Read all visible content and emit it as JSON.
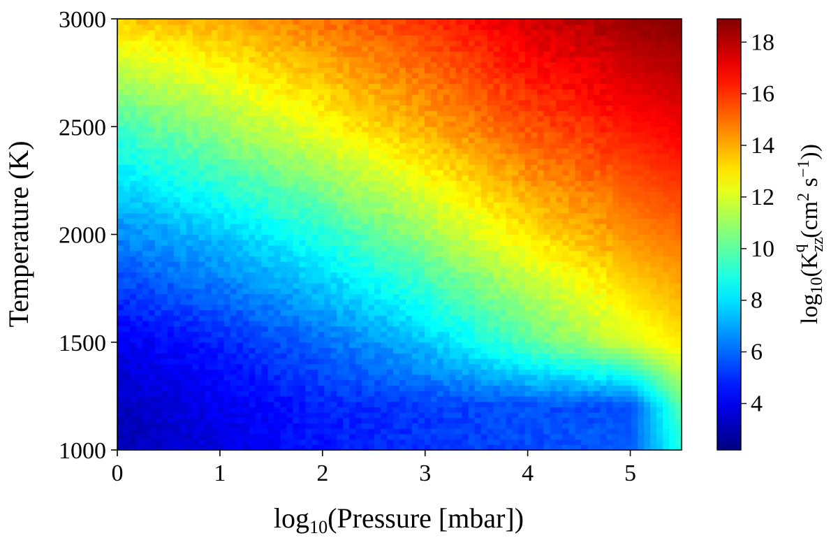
{
  "chart_data": {
    "type": "heatmap",
    "title": "",
    "xlabel": "log10(Pressure [mbar])",
    "ylabel": "Temperature (K)",
    "colorbar_label": "log10(Kzz^q (cm^2 s^-1))",
    "xlim": [
      0,
      5.5
    ],
    "ylim": [
      1000,
      3000
    ],
    "x_ticks": [
      0,
      1,
      2,
      3,
      4,
      5
    ],
    "x_tick_labels": [
      "0",
      "1",
      "2",
      "3",
      "4",
      "5"
    ],
    "y_ticks": [
      1000,
      1500,
      2000,
      2500,
      3000
    ],
    "y_tick_labels": [
      "1000",
      "1500",
      "2000",
      "2500",
      "3000"
    ],
    "colorbar_range": [
      2.2,
      18.9
    ],
    "colorbar_ticks": [
      4,
      6,
      8,
      10,
      12,
      14,
      16,
      18
    ],
    "colorbar_tick_labels": [
      "4",
      "6",
      "8",
      "10",
      "12",
      "14",
      "16",
      "18"
    ],
    "colormap": "jet",
    "grid": false,
    "grid_resolution": {
      "nx": 90,
      "ny": 80
    },
    "value_grid": {
      "x": [
        0,
        1,
        2,
        3,
        4,
        5,
        5.5
      ],
      "y": [
        1000,
        1200,
        1500,
        2000,
        2500,
        3000
      ],
      "z": [
        [
          3.0,
          3.8,
          4.6,
          5.1,
          5.5,
          5.8,
          9.0
        ],
        [
          3.2,
          4.0,
          4.8,
          5.2,
          5.6,
          5.5,
          10.0
        ],
        [
          4.0,
          4.8,
          6.0,
          7.5,
          9.8,
          12.0,
          13.0
        ],
        [
          6.5,
          7.5,
          9.0,
          11.0,
          13.0,
          14.5,
          15.0
        ],
        [
          9.5,
          11.0,
          12.5,
          14.0,
          15.5,
          16.5,
          17.0
        ],
        [
          13.5,
          14.0,
          15.0,
          16.0,
          17.5,
          18.5,
          18.9
        ]
      ]
    }
  }
}
